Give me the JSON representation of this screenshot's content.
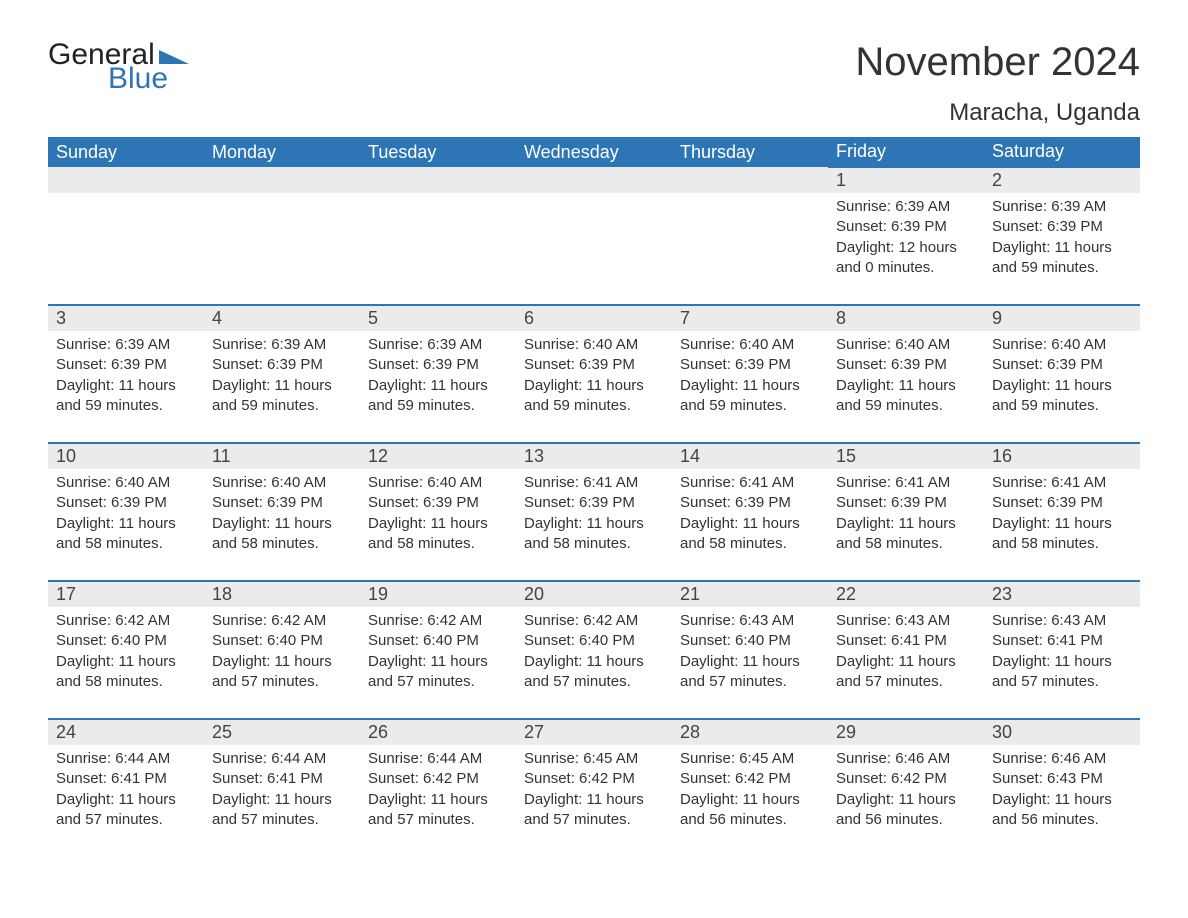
{
  "brand": {
    "word1": "General",
    "word2": "Blue",
    "accent": "#2e75b6"
  },
  "title": "November 2024",
  "location": "Maracha, Uganda",
  "colors": {
    "header_bg": "#2e75b6",
    "header_fg": "#ffffff",
    "daynum_bg": "#ebebeb",
    "row_border": "#2e75b6",
    "text": "#333333",
    "background": "#ffffff"
  },
  "fonts": {
    "title_size": 40,
    "location_size": 24,
    "dayheader_size": 18,
    "body_size": 15
  },
  "day_headers": [
    "Sunday",
    "Monday",
    "Tuesday",
    "Wednesday",
    "Thursday",
    "Friday",
    "Saturday"
  ],
  "weeks": [
    [
      null,
      null,
      null,
      null,
      null,
      {
        "n": "1",
        "sr": "6:39 AM",
        "ss": "6:39 PM",
        "dl": "12 hours and 0 minutes."
      },
      {
        "n": "2",
        "sr": "6:39 AM",
        "ss": "6:39 PM",
        "dl": "11 hours and 59 minutes."
      }
    ],
    [
      {
        "n": "3",
        "sr": "6:39 AM",
        "ss": "6:39 PM",
        "dl": "11 hours and 59 minutes."
      },
      {
        "n": "4",
        "sr": "6:39 AM",
        "ss": "6:39 PM",
        "dl": "11 hours and 59 minutes."
      },
      {
        "n": "5",
        "sr": "6:39 AM",
        "ss": "6:39 PM",
        "dl": "11 hours and 59 minutes."
      },
      {
        "n": "6",
        "sr": "6:40 AM",
        "ss": "6:39 PM",
        "dl": "11 hours and 59 minutes."
      },
      {
        "n": "7",
        "sr": "6:40 AM",
        "ss": "6:39 PM",
        "dl": "11 hours and 59 minutes."
      },
      {
        "n": "8",
        "sr": "6:40 AM",
        "ss": "6:39 PM",
        "dl": "11 hours and 59 minutes."
      },
      {
        "n": "9",
        "sr": "6:40 AM",
        "ss": "6:39 PM",
        "dl": "11 hours and 59 minutes."
      }
    ],
    [
      {
        "n": "10",
        "sr": "6:40 AM",
        "ss": "6:39 PM",
        "dl": "11 hours and 58 minutes."
      },
      {
        "n": "11",
        "sr": "6:40 AM",
        "ss": "6:39 PM",
        "dl": "11 hours and 58 minutes."
      },
      {
        "n": "12",
        "sr": "6:40 AM",
        "ss": "6:39 PM",
        "dl": "11 hours and 58 minutes."
      },
      {
        "n": "13",
        "sr": "6:41 AM",
        "ss": "6:39 PM",
        "dl": "11 hours and 58 minutes."
      },
      {
        "n": "14",
        "sr": "6:41 AM",
        "ss": "6:39 PM",
        "dl": "11 hours and 58 minutes."
      },
      {
        "n": "15",
        "sr": "6:41 AM",
        "ss": "6:39 PM",
        "dl": "11 hours and 58 minutes."
      },
      {
        "n": "16",
        "sr": "6:41 AM",
        "ss": "6:39 PM",
        "dl": "11 hours and 58 minutes."
      }
    ],
    [
      {
        "n": "17",
        "sr": "6:42 AM",
        "ss": "6:40 PM",
        "dl": "11 hours and 58 minutes."
      },
      {
        "n": "18",
        "sr": "6:42 AM",
        "ss": "6:40 PM",
        "dl": "11 hours and 57 minutes."
      },
      {
        "n": "19",
        "sr": "6:42 AM",
        "ss": "6:40 PM",
        "dl": "11 hours and 57 minutes."
      },
      {
        "n": "20",
        "sr": "6:42 AM",
        "ss": "6:40 PM",
        "dl": "11 hours and 57 minutes."
      },
      {
        "n": "21",
        "sr": "6:43 AM",
        "ss": "6:40 PM",
        "dl": "11 hours and 57 minutes."
      },
      {
        "n": "22",
        "sr": "6:43 AM",
        "ss": "6:41 PM",
        "dl": "11 hours and 57 minutes."
      },
      {
        "n": "23",
        "sr": "6:43 AM",
        "ss": "6:41 PM",
        "dl": "11 hours and 57 minutes."
      }
    ],
    [
      {
        "n": "24",
        "sr": "6:44 AM",
        "ss": "6:41 PM",
        "dl": "11 hours and 57 minutes."
      },
      {
        "n": "25",
        "sr": "6:44 AM",
        "ss": "6:41 PM",
        "dl": "11 hours and 57 minutes."
      },
      {
        "n": "26",
        "sr": "6:44 AM",
        "ss": "6:42 PM",
        "dl": "11 hours and 57 minutes."
      },
      {
        "n": "27",
        "sr": "6:45 AM",
        "ss": "6:42 PM",
        "dl": "11 hours and 57 minutes."
      },
      {
        "n": "28",
        "sr": "6:45 AM",
        "ss": "6:42 PM",
        "dl": "11 hours and 56 minutes."
      },
      {
        "n": "29",
        "sr": "6:46 AM",
        "ss": "6:42 PM",
        "dl": "11 hours and 56 minutes."
      },
      {
        "n": "30",
        "sr": "6:46 AM",
        "ss": "6:43 PM",
        "dl": "11 hours and 56 minutes."
      }
    ]
  ],
  "labels": {
    "sunrise": "Sunrise:",
    "sunset": "Sunset:",
    "daylight": "Daylight:"
  }
}
